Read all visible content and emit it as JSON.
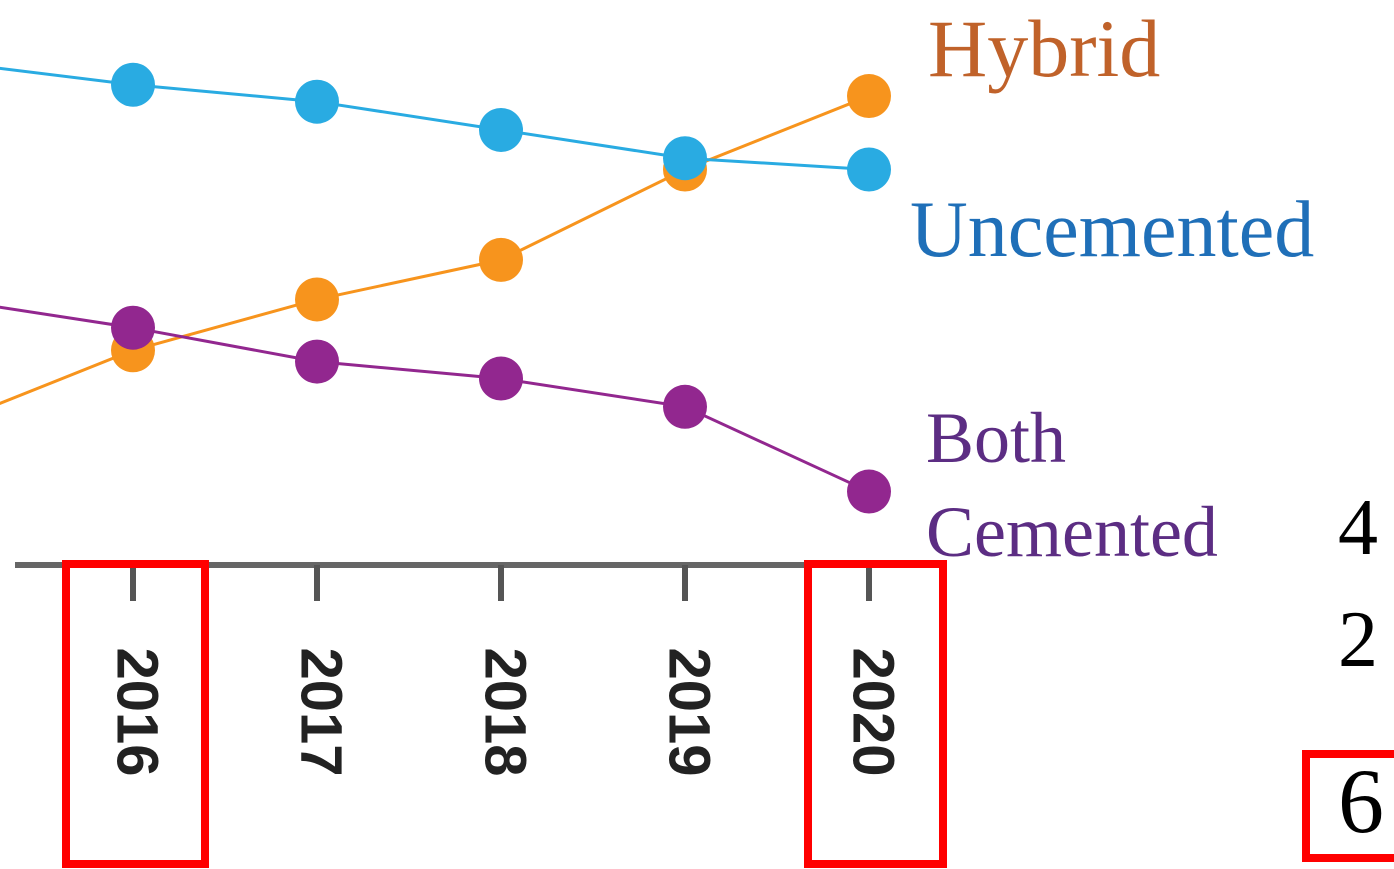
{
  "chart_data": {
    "type": "line",
    "categories": [
      null,
      "2016",
      "2017",
      "2018",
      "2019",
      "2020"
    ],
    "series": [
      {
        "name": "Hybrid",
        "color": "#f7941d",
        "label_color": "#c0622a",
        "values": [
          25,
          38,
          47,
          54,
          70,
          83
        ]
      },
      {
        "name": "Uncemented",
        "color": "#29abe2",
        "label_color": "#1f6fb8",
        "values": [
          89,
          85,
          82,
          77,
          72,
          70
        ]
      },
      {
        "name": "Both Cemented",
        "color": "#92278f",
        "label_color": "#5c2d83",
        "values": [
          47,
          42,
          36,
          33,
          28,
          13
        ]
      }
    ],
    "ylim": [
      0,
      100
    ],
    "annotations": [
      "4",
      "2",
      "6"
    ]
  }
}
